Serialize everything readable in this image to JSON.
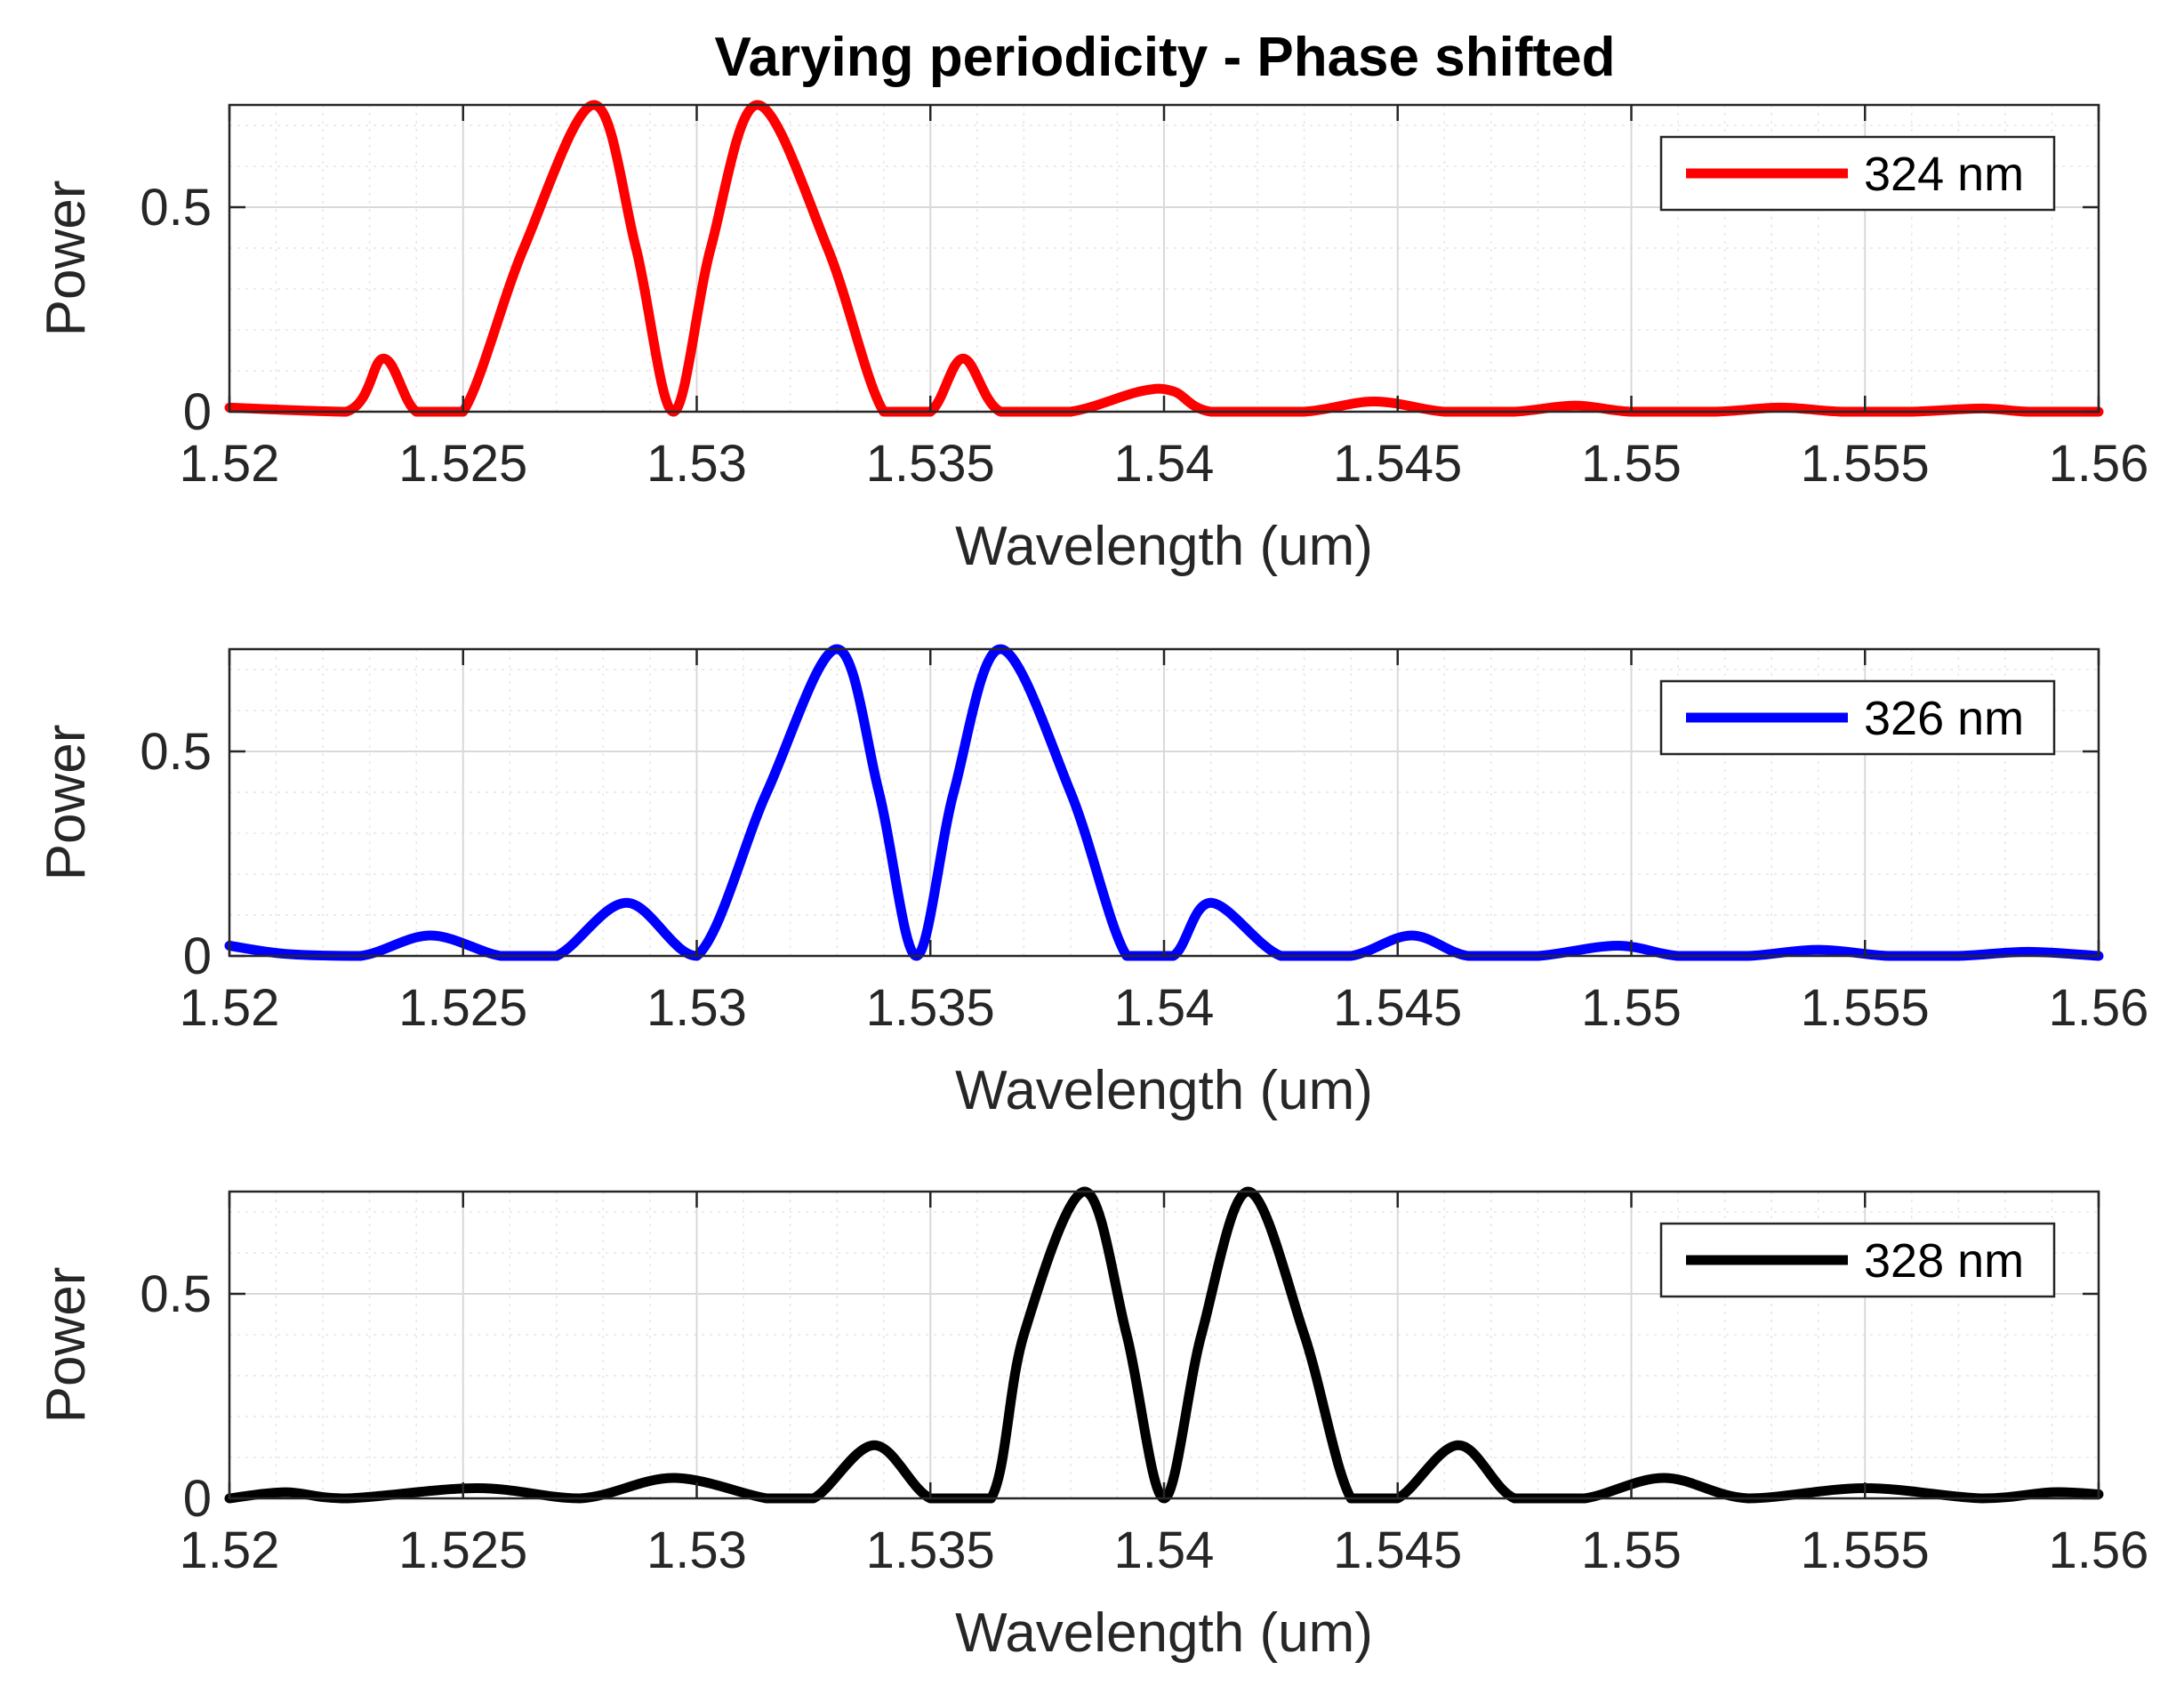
{
  "chart_data": [
    {
      "type": "line",
      "title": "Varying periodicity - Phase shifted",
      "xlabel": "Wavelength (um)",
      "ylabel": "Power",
      "xlim": [
        1.52,
        1.56
      ],
      "ylim": [
        0,
        0.75
      ],
      "xticks": [
        1.52,
        1.525,
        1.53,
        1.535,
        1.54,
        1.545,
        1.55,
        1.555,
        1.56
      ],
      "xtick_labels": [
        "1.52",
        "1.525",
        "1.53",
        "1.535",
        "1.54",
        "1.545",
        "1.55",
        "1.555",
        "1.56"
      ],
      "yticks": [
        0,
        0.5
      ],
      "ytick_labels": [
        "0",
        "0.5"
      ],
      "grid": true,
      "legend_position": "top-right",
      "series": [
        {
          "name": "324 nm",
          "color": "#ff0000",
          "center": 1.5295,
          "x": [
            1.52,
            1.5225,
            1.5233,
            1.524,
            1.525,
            1.5263,
            1.5278,
            1.5287,
            1.5295,
            1.5303,
            1.5313,
            1.5328,
            1.534,
            1.535,
            1.5357,
            1.5365,
            1.538,
            1.5395,
            1.5402,
            1.541,
            1.543,
            1.5445,
            1.546,
            1.5475,
            1.5488,
            1.55,
            1.5518,
            1.5532,
            1.5545,
            1.556,
            1.5575,
            1.5585,
            1.56
          ],
          "values": [
            0.01,
            0.0,
            0.13,
            0.0,
            0.0,
            0.4,
            0.75,
            0.4,
            0.0,
            0.4,
            0.75,
            0.4,
            0.0,
            0.0,
            0.13,
            0.0,
            0.0,
            0.05,
            0.05,
            0.0,
            0.0,
            0.025,
            0.0,
            0.0,
            0.015,
            0.0,
            0.0,
            0.01,
            0.0,
            0.0,
            0.008,
            0.0,
            0.0
          ]
        },
        {
          "name": "326 nm",
          "color": "#0000ff",
          "center": 1.5347,
          "x": [
            1.52,
            1.5212,
            1.5228,
            1.5243,
            1.5258,
            1.527,
            1.5285,
            1.53,
            1.5315,
            1.533,
            1.5339,
            1.5347,
            1.5355,
            1.5365,
            1.538,
            1.5392,
            1.5402,
            1.541,
            1.5425,
            1.544,
            1.5453,
            1.5465,
            1.548,
            1.5497,
            1.551,
            1.5525,
            1.554,
            1.5555,
            1.557,
            1.5585,
            1.56
          ],
          "values": [
            0.025,
            0.005,
            0.0,
            0.05,
            0.0,
            0.0,
            0.13,
            0.0,
            0.4,
            0.75,
            0.4,
            0.0,
            0.4,
            0.75,
            0.4,
            0.0,
            0.0,
            0.13,
            0.0,
            0.0,
            0.05,
            0.0,
            0.0,
            0.025,
            0.0,
            0.0,
            0.015,
            0.0,
            0.0,
            0.01,
            0.0
          ]
        },
        {
          "name": "328 nm",
          "color": "#000000",
          "center": 1.54,
          "x": [
            1.52,
            1.5212,
            1.5225,
            1.5253,
            1.5275,
            1.5295,
            1.5315,
            1.5325,
            1.5338,
            1.535,
            1.5363,
            1.537,
            1.5383,
            1.5392,
            1.54,
            1.5408,
            1.5418,
            1.543,
            1.544,
            1.545,
            1.5463,
            1.5475,
            1.549,
            1.5507,
            1.5525,
            1.555,
            1.5575,
            1.559,
            1.56
          ],
          "values": [
            0.0,
            0.015,
            0.0,
            0.025,
            0.0,
            0.05,
            0.0,
            0.0,
            0.13,
            0.0,
            0.0,
            0.4,
            0.75,
            0.4,
            0.0,
            0.4,
            0.75,
            0.4,
            0.0,
            0.0,
            0.13,
            0.0,
            0.0,
            0.05,
            0.0,
            0.025,
            0.0,
            0.015,
            0.01
          ]
        }
      ]
    }
  ]
}
